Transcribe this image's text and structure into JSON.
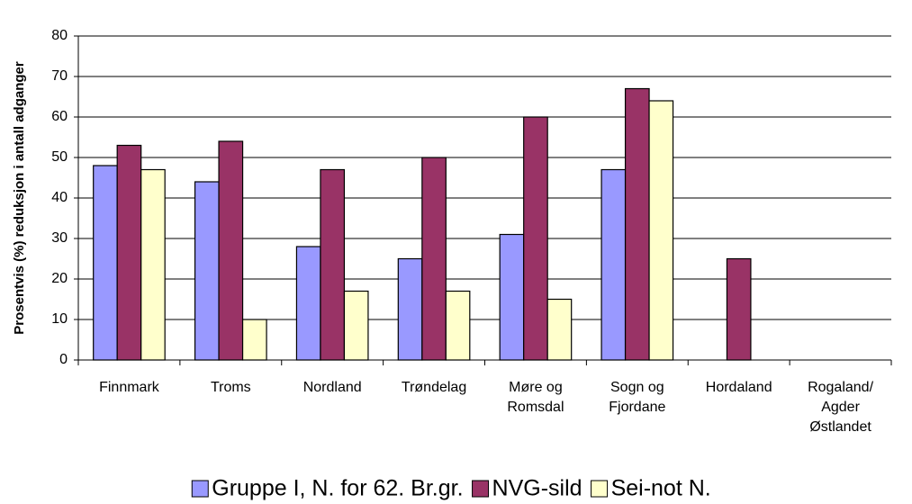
{
  "chart_data": {
    "type": "bar",
    "ylabel": "Prosentvis (%) reduksjon i antall adganger",
    "categories": [
      "Finnmark",
      "Troms",
      "Nordland",
      "Trøndelag",
      "Møre og\nRomsdal",
      "Sogn og\nFjordane",
      "Hordaland",
      "Rogaland/\nAgder\nØstlandet"
    ],
    "series": [
      {
        "name": "Gruppe I, N. for 62. Br.gr.",
        "color": "#9999ff",
        "values": [
          48,
          44,
          28,
          25,
          31,
          47,
          null,
          null
        ]
      },
      {
        "name": "NVG-sild",
        "color": "#993366",
        "values": [
          53,
          54,
          47,
          50,
          60,
          67,
          25,
          null
        ]
      },
      {
        "name": "Sei-not N.",
        "color": "#ffffcc",
        "values": [
          47,
          10,
          17,
          17,
          15,
          64,
          null,
          null
        ]
      }
    ],
    "ylim": [
      0,
      80
    ],
    "yticks": [
      0,
      10,
      20,
      30,
      40,
      50,
      60,
      70,
      80
    ],
    "grid": true,
    "legend": "bottom"
  }
}
